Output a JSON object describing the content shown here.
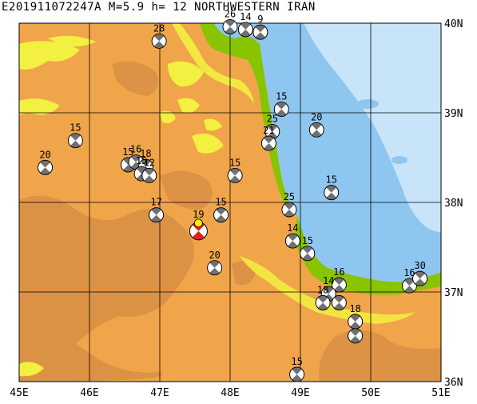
{
  "title": "E201911072247A  M=5.9  h=  12  NORTHWESTERN IRAN",
  "map": {
    "lon_labels": [
      "45E",
      "46E",
      "47E",
      "48E",
      "49E",
      "50E",
      "51E"
    ],
    "lat_labels": [
      "40N",
      "39N",
      "38N",
      "37N",
      "36N"
    ],
    "lon_range": [
      45,
      51
    ],
    "lat_range": [
      36,
      40
    ],
    "colors": {
      "land": "#f0a54a",
      "highland": "#d98f44",
      "lowland_yellow": "#f2f040",
      "coastal_green": "#88c400",
      "sea_deep": "#8ec6f0",
      "sea_shallow": "#c8e4f8",
      "grid": "#000000",
      "mechanism_dark": "#707070",
      "event_red": "#e02020",
      "epicenter_yellow": "#ffee00"
    }
  },
  "main_event": {
    "lon": 47.55,
    "lat": 37.68,
    "depth_label": "19"
  },
  "mechanisms": [
    {
      "lon": 46.99,
      "lat": 39.8,
      "label": "28"
    },
    {
      "lon": 48.0,
      "lat": 39.96,
      "label": "26"
    },
    {
      "lon": 48.22,
      "lat": 39.93,
      "label": "14"
    },
    {
      "lon": 48.43,
      "lat": 39.9,
      "label": "9"
    },
    {
      "lon": 48.73,
      "lat": 39.04,
      "label": "15"
    },
    {
      "lon": 48.6,
      "lat": 38.79,
      "label": "25"
    },
    {
      "lon": 48.55,
      "lat": 38.66,
      "label": "21"
    },
    {
      "lon": 49.23,
      "lat": 38.81,
      "label": "20"
    },
    {
      "lon": 45.8,
      "lat": 38.69,
      "label": "15"
    },
    {
      "lon": 45.37,
      "lat": 38.39,
      "label": "20"
    },
    {
      "lon": 46.55,
      "lat": 38.42,
      "label": "15"
    },
    {
      "lon": 46.66,
      "lat": 38.45,
      "label": "16"
    },
    {
      "lon": 46.8,
      "lat": 38.4,
      "label": "18"
    },
    {
      "lon": 46.74,
      "lat": 38.32,
      "label": "15"
    },
    {
      "lon": 46.85,
      "lat": 38.3,
      "label": "12"
    },
    {
      "lon": 48.07,
      "lat": 38.3,
      "label": "15"
    },
    {
      "lon": 49.44,
      "lat": 38.11,
      "label": "15"
    },
    {
      "lon": 48.84,
      "lat": 37.92,
      "label": "25"
    },
    {
      "lon": 46.95,
      "lat": 37.86,
      "label": "17"
    },
    {
      "lon": 47.87,
      "lat": 37.86,
      "label": "15"
    },
    {
      "lon": 48.89,
      "lat": 37.57,
      "label": "14"
    },
    {
      "lon": 49.1,
      "lat": 37.43,
      "label": "15"
    },
    {
      "lon": 47.78,
      "lat": 37.27,
      "label": "20"
    },
    {
      "lon": 49.55,
      "lat": 37.08,
      "label": "16"
    },
    {
      "lon": 49.4,
      "lat": 36.98,
      "label": "14"
    },
    {
      "lon": 49.32,
      "lat": 36.88,
      "label": "18"
    },
    {
      "lon": 49.55,
      "lat": 36.88,
      "label": ""
    },
    {
      "lon": 50.55,
      "lat": 37.07,
      "label": "16"
    },
    {
      "lon": 50.7,
      "lat": 37.15,
      "label": "30"
    },
    {
      "lon": 49.78,
      "lat": 36.67,
      "label": "18"
    },
    {
      "lon": 49.78,
      "lat": 36.51,
      "label": ""
    },
    {
      "lon": 48.95,
      "lat": 36.08,
      "label": "15"
    }
  ]
}
